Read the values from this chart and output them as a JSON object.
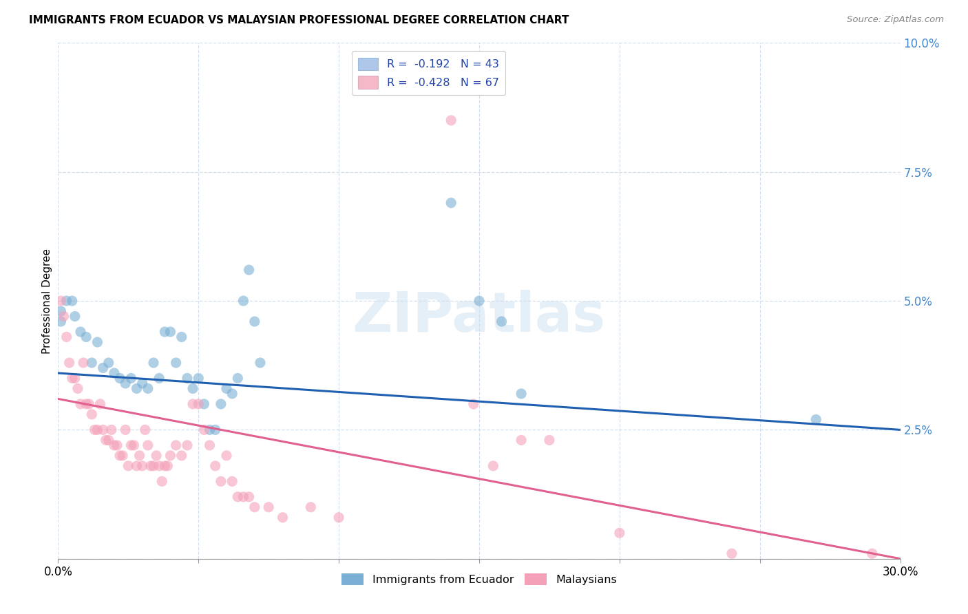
{
  "title": "IMMIGRANTS FROM ECUADOR VS MALAYSIAN PROFESSIONAL DEGREE CORRELATION CHART",
  "source": "Source: ZipAtlas.com",
  "ylabel": "Professional Degree",
  "xlim": [
    0.0,
    0.3
  ],
  "ylim": [
    0.0,
    0.1
  ],
  "yticks": [
    0.0,
    0.025,
    0.05,
    0.075,
    0.1
  ],
  "ytick_labels": [
    "",
    "2.5%",
    "5.0%",
    "7.5%",
    "10.0%"
  ],
  "xticks": [
    0.0,
    0.05,
    0.1,
    0.15,
    0.2,
    0.25,
    0.3
  ],
  "xtick_labels": [
    "0.0%",
    "",
    "",
    "",
    "",
    "",
    "30.0%"
  ],
  "legend_items": [
    {
      "label": "R =  -0.192   N = 43",
      "color": "#aec6e8"
    },
    {
      "label": "R =  -0.428   N = 67",
      "color": "#f4b8c8"
    }
  ],
  "legend_labels": [
    "Immigrants from Ecuador",
    "Malaysians"
  ],
  "ecuador_color": "#7bafd4",
  "malaysia_color": "#f4a0b8",
  "ecuador_line_color": "#2060b0",
  "malaysia_line_color": "#e06090",
  "watermark": "ZIPatlas",
  "ecuador_line": [
    0.0,
    0.036,
    0.3,
    0.025
  ],
  "malaysia_line": [
    0.0,
    0.031,
    0.3,
    0.0
  ],
  "ecuador_points": [
    [
      0.001,
      0.048
    ],
    [
      0.001,
      0.046
    ],
    [
      0.003,
      0.05
    ],
    [
      0.005,
      0.05
    ],
    [
      0.006,
      0.047
    ],
    [
      0.008,
      0.044
    ],
    [
      0.01,
      0.043
    ],
    [
      0.012,
      0.038
    ],
    [
      0.014,
      0.042
    ],
    [
      0.016,
      0.037
    ],
    [
      0.018,
      0.038
    ],
    [
      0.02,
      0.036
    ],
    [
      0.022,
      0.035
    ],
    [
      0.024,
      0.034
    ],
    [
      0.026,
      0.035
    ],
    [
      0.028,
      0.033
    ],
    [
      0.03,
      0.034
    ],
    [
      0.032,
      0.033
    ],
    [
      0.034,
      0.038
    ],
    [
      0.036,
      0.035
    ],
    [
      0.038,
      0.044
    ],
    [
      0.04,
      0.044
    ],
    [
      0.042,
      0.038
    ],
    [
      0.044,
      0.043
    ],
    [
      0.046,
      0.035
    ],
    [
      0.048,
      0.033
    ],
    [
      0.05,
      0.035
    ],
    [
      0.052,
      0.03
    ],
    [
      0.054,
      0.025
    ],
    [
      0.056,
      0.025
    ],
    [
      0.058,
      0.03
    ],
    [
      0.06,
      0.033
    ],
    [
      0.062,
      0.032
    ],
    [
      0.064,
      0.035
    ],
    [
      0.066,
      0.05
    ],
    [
      0.068,
      0.056
    ],
    [
      0.07,
      0.046
    ],
    [
      0.072,
      0.038
    ],
    [
      0.14,
      0.069
    ],
    [
      0.15,
      0.05
    ],
    [
      0.158,
      0.046
    ],
    [
      0.165,
      0.032
    ],
    [
      0.27,
      0.027
    ]
  ],
  "malaysia_points": [
    [
      0.001,
      0.05
    ],
    [
      0.002,
      0.047
    ],
    [
      0.003,
      0.043
    ],
    [
      0.004,
      0.038
    ],
    [
      0.005,
      0.035
    ],
    [
      0.006,
      0.035
    ],
    [
      0.007,
      0.033
    ],
    [
      0.008,
      0.03
    ],
    [
      0.009,
      0.038
    ],
    [
      0.01,
      0.03
    ],
    [
      0.011,
      0.03
    ],
    [
      0.012,
      0.028
    ],
    [
      0.013,
      0.025
    ],
    [
      0.014,
      0.025
    ],
    [
      0.015,
      0.03
    ],
    [
      0.016,
      0.025
    ],
    [
      0.017,
      0.023
    ],
    [
      0.018,
      0.023
    ],
    [
      0.019,
      0.025
    ],
    [
      0.02,
      0.022
    ],
    [
      0.021,
      0.022
    ],
    [
      0.022,
      0.02
    ],
    [
      0.023,
      0.02
    ],
    [
      0.024,
      0.025
    ],
    [
      0.025,
      0.018
    ],
    [
      0.026,
      0.022
    ],
    [
      0.027,
      0.022
    ],
    [
      0.028,
      0.018
    ],
    [
      0.029,
      0.02
    ],
    [
      0.03,
      0.018
    ],
    [
      0.031,
      0.025
    ],
    [
      0.032,
      0.022
    ],
    [
      0.033,
      0.018
    ],
    [
      0.034,
      0.018
    ],
    [
      0.035,
      0.02
    ],
    [
      0.036,
      0.018
    ],
    [
      0.037,
      0.015
    ],
    [
      0.038,
      0.018
    ],
    [
      0.039,
      0.018
    ],
    [
      0.04,
      0.02
    ],
    [
      0.042,
      0.022
    ],
    [
      0.044,
      0.02
    ],
    [
      0.046,
      0.022
    ],
    [
      0.048,
      0.03
    ],
    [
      0.05,
      0.03
    ],
    [
      0.052,
      0.025
    ],
    [
      0.054,
      0.022
    ],
    [
      0.056,
      0.018
    ],
    [
      0.058,
      0.015
    ],
    [
      0.06,
      0.02
    ],
    [
      0.062,
      0.015
    ],
    [
      0.064,
      0.012
    ],
    [
      0.066,
      0.012
    ],
    [
      0.068,
      0.012
    ],
    [
      0.07,
      0.01
    ],
    [
      0.075,
      0.01
    ],
    [
      0.08,
      0.008
    ],
    [
      0.09,
      0.01
    ],
    [
      0.1,
      0.008
    ],
    [
      0.14,
      0.085
    ],
    [
      0.148,
      0.03
    ],
    [
      0.155,
      0.018
    ],
    [
      0.165,
      0.023
    ],
    [
      0.175,
      0.023
    ],
    [
      0.2,
      0.005
    ],
    [
      0.24,
      0.001
    ],
    [
      0.29,
      0.001
    ]
  ]
}
